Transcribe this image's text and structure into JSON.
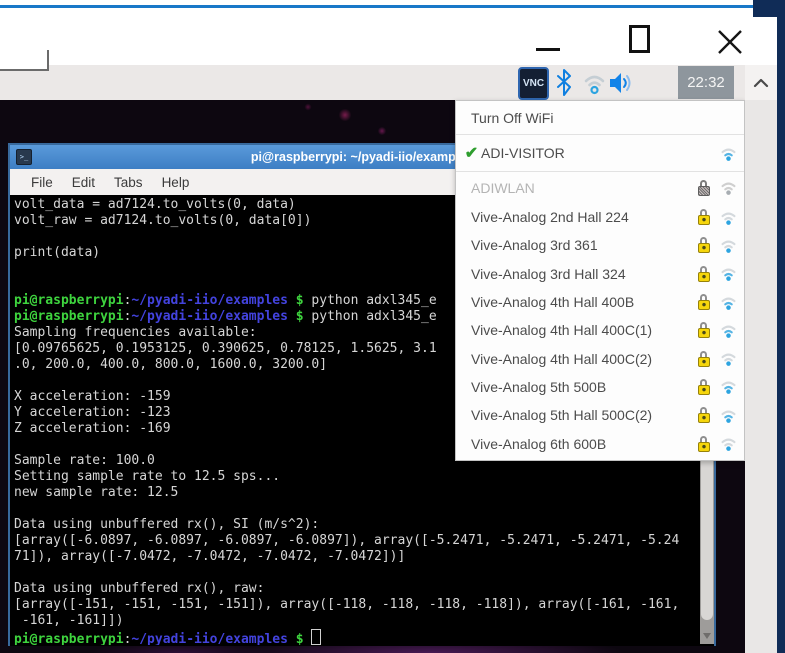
{
  "colors": {
    "frame_navy": "#102c57",
    "frame_blue_line": "#1878c8",
    "taskbar_bg": "#ebe8e7",
    "terminal_titlebar_blue": "#4a8ed5",
    "prompt_green": "#3ed43e",
    "prompt_blue": "#4343de",
    "terminal_fg": "#d6d6d6",
    "lock_yellow": "#f6d60c",
    "check_green": "#2f9e2f",
    "wifi_blue": "#2da4e0"
  },
  "taskbar": {
    "vnc_label": "VNC",
    "clock": "22:32",
    "icons": [
      "vnc-icon",
      "bluetooth-icon",
      "wifi-icon",
      "volume-icon"
    ]
  },
  "wifi_menu": {
    "turn_off_label": "Turn Off WiFi",
    "connected": {
      "label": "ADI-VISITOR",
      "check_glyph": "✔",
      "signal": 2
    },
    "disabled_network": {
      "label": "ADIWLAN"
    },
    "networks": [
      {
        "label": "Vive-Analog 2nd Hall 224",
        "signal": 1,
        "secured": true
      },
      {
        "label": "Vive-Analog 3rd 361",
        "signal": 1,
        "secured": true
      },
      {
        "label": "Vive-Analog 3rd Hall 324",
        "signal": 2,
        "secured": true
      },
      {
        "label": "Vive-Analog 4th Hall 400B",
        "signal": 2,
        "secured": true
      },
      {
        "label": "Vive-Analog 4th Hall 400C(1)",
        "signal": 2,
        "secured": true
      },
      {
        "label": "Vive-Analog 4th Hall 400C(2)",
        "signal": 1,
        "secured": true
      },
      {
        "label": "Vive-Analog 5th 500B",
        "signal": 2,
        "secured": true
      },
      {
        "label": "Vive-Analog 5th Hall 500C(2)",
        "signal": 2,
        "secured": true
      },
      {
        "label": "Vive-Analog 6th 600B",
        "signal": 1,
        "secured": true
      }
    ]
  },
  "terminal": {
    "title": "pi@raspberrypi: ~/pyadi-iio/examples",
    "icon_glyph": ">_",
    "menu": [
      "File",
      "Edit",
      "Tabs",
      "Help"
    ],
    "lines": [
      {
        "segs": [
          {
            "cl": "plain",
            "t": "volt_data = ad7124.to_volts(0, data)"
          }
        ]
      },
      {
        "segs": [
          {
            "cl": "plain",
            "t": "volt_raw = ad7124.to_volts(0, data[0])"
          }
        ]
      },
      {
        "segs": []
      },
      {
        "segs": [
          {
            "cl": "plain",
            "t": "print(data)"
          }
        ]
      },
      {
        "segs": []
      },
      {
        "segs": []
      },
      {
        "segs": [
          {
            "cl": "green",
            "t": "pi@raspberrypi"
          },
          {
            "cl": "plain",
            "t": ":"
          },
          {
            "cl": "blue",
            "t": "~/pyadi-iio/examples"
          },
          {
            "cl": "green",
            "t": " $"
          },
          {
            "cl": "plain",
            "t": " python adxl345_e"
          }
        ]
      },
      {
        "segs": [
          {
            "cl": "green",
            "t": "pi@raspberrypi"
          },
          {
            "cl": "plain",
            "t": ":"
          },
          {
            "cl": "blue",
            "t": "~/pyadi-iio/examples"
          },
          {
            "cl": "green",
            "t": " $"
          },
          {
            "cl": "plain",
            "t": " python adxl345_e"
          }
        ]
      },
      {
        "segs": [
          {
            "cl": "plain",
            "t": "Sampling frequencies available:"
          }
        ]
      },
      {
        "segs": [
          {
            "cl": "plain",
            "t": "[0.09765625, 0.1953125, 0.390625, 0.78125, 1.5625, 3.1"
          }
        ]
      },
      {
        "segs": [
          {
            "cl": "plain",
            "t": ".0, 200.0, 400.0, 800.0, 1600.0, 3200.0]"
          }
        ]
      },
      {
        "segs": []
      },
      {
        "segs": [
          {
            "cl": "plain",
            "t": "X acceleration: -159"
          }
        ]
      },
      {
        "segs": [
          {
            "cl": "plain",
            "t": "Y acceleration: -123"
          }
        ]
      },
      {
        "segs": [
          {
            "cl": "plain",
            "t": "Z acceleration: -169"
          }
        ]
      },
      {
        "segs": []
      },
      {
        "segs": [
          {
            "cl": "plain",
            "t": "Sample rate: 100.0"
          }
        ]
      },
      {
        "segs": [
          {
            "cl": "plain",
            "t": "Setting sample rate to 12.5 sps..."
          }
        ]
      },
      {
        "segs": [
          {
            "cl": "plain",
            "t": "new sample rate: 12.5"
          }
        ]
      },
      {
        "segs": []
      },
      {
        "segs": [
          {
            "cl": "plain",
            "t": "Data using unbuffered rx(), SI (m/s^2):"
          }
        ]
      },
      {
        "segs": [
          {
            "cl": "plain",
            "t": "[array([-6.0897, -6.0897, -6.0897, -6.0897]), array([-5.2471, -5.2471, -5.2471, -5.24"
          }
        ]
      },
      {
        "segs": [
          {
            "cl": "plain",
            "t": "71]), array([-7.0472, -7.0472, -7.0472, -7.0472])]"
          }
        ]
      },
      {
        "segs": []
      },
      {
        "segs": [
          {
            "cl": "plain",
            "t": "Data using unbuffered rx(), raw:"
          }
        ]
      },
      {
        "segs": [
          {
            "cl": "plain",
            "t": "[array([-151, -151, -151, -151]), array([-118, -118, -118, -118]), array([-161, -161,"
          }
        ]
      },
      {
        "segs": [
          {
            "cl": "plain",
            "t": " -161, -161]])"
          }
        ]
      },
      {
        "segs": [
          {
            "cl": "green",
            "t": "pi@raspberrypi"
          },
          {
            "cl": "plain",
            "t": ":"
          },
          {
            "cl": "blue",
            "t": "~/pyadi-iio/examples"
          },
          {
            "cl": "green",
            "t": " $ "
          }
        ],
        "cursor": true
      }
    ]
  }
}
